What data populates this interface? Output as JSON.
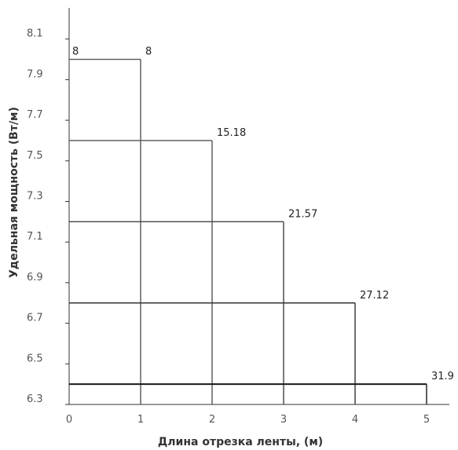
{
  "chart_data": {
    "type": "line",
    "title": "",
    "xlabel": "Длина отрезка ленты, (м)",
    "ylabel": "Удельная мощность (Вт/м)",
    "xlim": [
      0,
      5
    ],
    "ylim": [
      6.3,
      8.25
    ],
    "x_ticks": [
      "0",
      "1",
      "2",
      "3",
      "4",
      "5"
    ],
    "y_ticks": [
      "6.3",
      "6.5",
      "6.7",
      "6.9",
      "7.1",
      "7.3",
      "7.5",
      "7.7",
      "7.9",
      "8.1"
    ],
    "steps": [
      {
        "x_end": 1,
        "y": 8.0,
        "label": "8",
        "stroke": "#555555"
      },
      {
        "x_end": 2,
        "y": 7.6,
        "label": "15.18",
        "stroke": "#555555"
      },
      {
        "x_end": 3,
        "y": 7.2,
        "label": "21.57",
        "stroke": "#444444"
      },
      {
        "x_end": 4,
        "y": 6.8,
        "label": "27.12",
        "stroke": "#333333"
      },
      {
        "x_end": 5,
        "y": 6.4,
        "label": "31.9",
        "stroke": "#1a1a1a"
      }
    ],
    "start_label": "8",
    "grid": false
  }
}
